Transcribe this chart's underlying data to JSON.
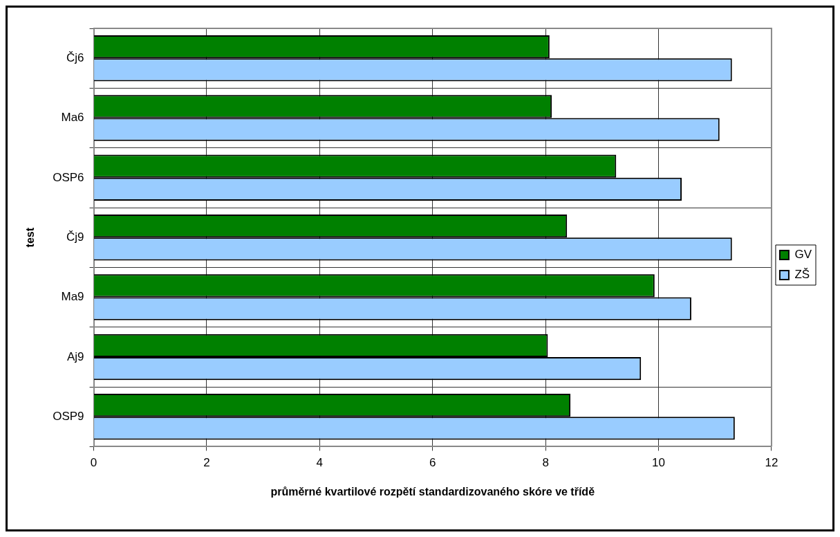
{
  "chart_data": {
    "type": "bar",
    "orientation": "horizontal",
    "xlabel": "průměrné kvartilové rozpětí standardizovaného skóre ve třídě",
    "ylabel": "test",
    "categories": [
      "Čj6",
      "Ma6",
      "OSP6",
      "Čj9",
      "Ma9",
      "Aj9",
      "OSP9"
    ],
    "series": [
      {
        "name": "GV",
        "color": "#008000",
        "values": [
          8.07,
          8.11,
          9.25,
          8.38,
          9.93,
          8.04,
          8.44
        ]
      },
      {
        "name": "ZŠ",
        "color": "#99ccff",
        "values": [
          11.3,
          11.08,
          10.41,
          11.3,
          10.58,
          9.69,
          11.35
        ]
      }
    ],
    "xlim": [
      0,
      12
    ],
    "xticks": [
      0,
      2,
      4,
      6,
      8,
      10,
      12
    ],
    "grid": true,
    "legend": "right"
  }
}
